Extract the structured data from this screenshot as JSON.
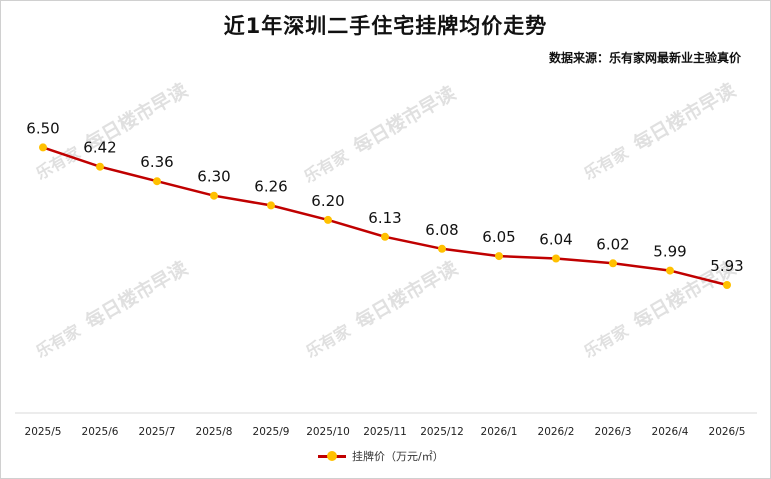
{
  "title": "近1年深圳二手住宅挂牌均价走势",
  "source": "数据来源：乐有家网最新业主验真价",
  "watermark": {
    "brand": "乐有家",
    "text": "每日楼市早读"
  },
  "colors": {
    "line": "#c00000",
    "marker": "#ffc000"
  },
  "chart_data": {
    "type": "line",
    "categories": [
      "2025/5",
      "2025/6",
      "2025/7",
      "2025/8",
      "2025/9",
      "2025/10",
      "2025/11",
      "2025/12",
      "2026/1",
      "2026/2",
      "2026/3",
      "2026/4",
      "2026/5"
    ],
    "series": [
      {
        "name": "挂牌价（万元/㎡）",
        "values": [
          6.5,
          6.42,
          6.36,
          6.3,
          6.26,
          6.2,
          6.13,
          6.08,
          6.05,
          6.04,
          6.02,
          5.99,
          5.93
        ],
        "labels": [
          "6.50",
          "6.42",
          "6.36",
          "6.30",
          "6.26",
          "6.20",
          "6.13",
          "6.08",
          "6.05",
          "6.04",
          "6.02",
          "5.99",
          "5.93"
        ]
      }
    ],
    "ylim": [
      5.4,
      6.8
    ],
    "grid": false,
    "legend_position": "bottom"
  }
}
